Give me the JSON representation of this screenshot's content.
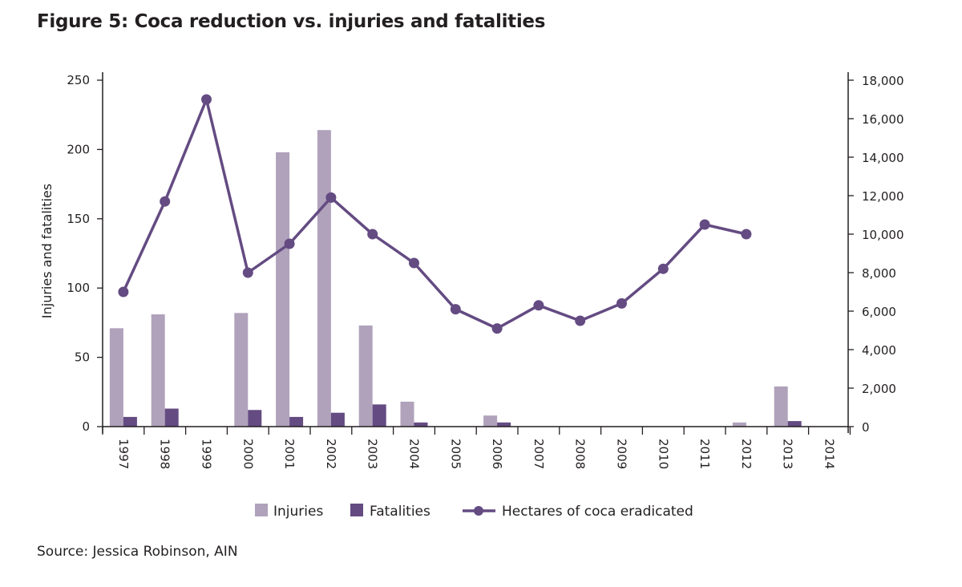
{
  "title": "Figure 5: Coca reduction vs. injuries and fatalities",
  "source": "Source: Jessica Robinson, AIN",
  "colors": {
    "injuries": "#b0a2bb",
    "fatalities": "#644b82",
    "hectares": "#644b82",
    "axis": "#231f20"
  },
  "chart_data": {
    "type": "bar",
    "title": "Figure 5: Coca reduction vs. injuries and fatalities",
    "xlabel": "",
    "ylabel": "Injuries and fatalities",
    "y2label": "",
    "categories": [
      "1997",
      "1998",
      "1999",
      "2000",
      "2001",
      "2002",
      "2003",
      "2004",
      "2005",
      "2006",
      "2007",
      "2008",
      "2009",
      "2010",
      "2011",
      "2012",
      "2013",
      "2014"
    ],
    "ylim": [
      0,
      250
    ],
    "yticks": [
      0,
      50,
      100,
      150,
      200,
      250
    ],
    "ytick_labels": [
      "0",
      "50",
      "100",
      "150",
      "200",
      "250"
    ],
    "y2lim": [
      0,
      18000
    ],
    "y2ticks": [
      0,
      2000,
      4000,
      6000,
      8000,
      10000,
      12000,
      14000,
      16000,
      18000
    ],
    "y2tick_labels": [
      "0",
      "2,000",
      "4,000",
      "6,000",
      "8,000",
      "10,000",
      "12,000",
      "14,000",
      "16,000",
      "18,000"
    ],
    "grid": false,
    "legend_position": "bottom-center",
    "series": [
      {
        "name": "Injuries",
        "type": "bar",
        "axis": "left",
        "values": [
          71,
          81,
          null,
          82,
          198,
          214,
          73,
          18,
          null,
          8,
          null,
          null,
          null,
          null,
          null,
          3,
          29,
          null
        ]
      },
      {
        "name": "Fatalities",
        "type": "bar",
        "axis": "left",
        "values": [
          7,
          13,
          null,
          12,
          7,
          10,
          16,
          3,
          null,
          3,
          null,
          null,
          null,
          null,
          null,
          null,
          4,
          null
        ]
      },
      {
        "name": "Hectares of coca eradicated",
        "type": "line",
        "axis": "right",
        "marker": "circle",
        "values": [
          7000,
          11700,
          17000,
          8000,
          9500,
          11900,
          10000,
          8500,
          6100,
          5100,
          6300,
          5500,
          6400,
          8200,
          10500,
          10000,
          null,
          null
        ]
      }
    ]
  }
}
